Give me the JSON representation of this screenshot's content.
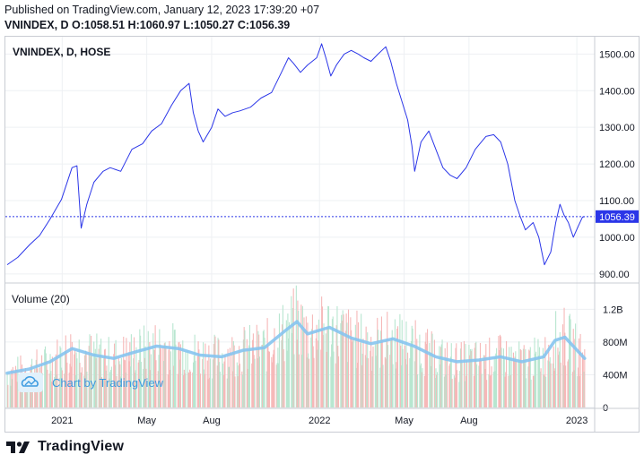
{
  "header": {
    "published": "Published on TradingView.com, January 12, 2023 17:39:20 +07",
    "ohlc": "VNINDEX, D O:1058.51 H:1060.97 L:1050.27 C:1056.39"
  },
  "chart_data": {
    "type": "line",
    "title": "VNINDEX, D, HOSE",
    "last_price_label": "1056.39",
    "last_price": 1056.39,
    "price_ticks": [
      "1500.00",
      "1400.00",
      "1300.00",
      "1200.00",
      "1100.00",
      "1000.00",
      "900.00"
    ],
    "price_tick_values": [
      1500,
      1400,
      1300,
      1200,
      1100,
      1000,
      900
    ],
    "ylim": [
      880,
      1540
    ],
    "x_ticks": [
      "2021",
      "May",
      "Aug",
      "2022",
      "May",
      "Aug",
      "2023"
    ],
    "x_tick_dates": [
      "2021-01-01",
      "2021-05-01",
      "2021-08-01",
      "2022-01-01",
      "2022-05-01",
      "2022-08-01",
      "2023-01-01"
    ],
    "xlim": [
      "2020-10-15",
      "2023-01-25"
    ],
    "series": [
      {
        "values": [
          [
            "2020-10-15",
            925
          ],
          [
            "2020-10-30",
            945
          ],
          [
            "2020-11-16",
            980
          ],
          [
            "2020-11-30",
            1005
          ],
          [
            "2020-12-15",
            1050
          ],
          [
            "2020-12-31",
            1103
          ],
          [
            "2021-01-15",
            1190
          ],
          [
            "2021-01-22",
            1195
          ],
          [
            "2021-01-28",
            1025
          ],
          [
            "2021-02-05",
            1090
          ],
          [
            "2021-02-15",
            1150
          ],
          [
            "2021-02-28",
            1180
          ],
          [
            "2021-03-10",
            1190
          ],
          [
            "2021-03-25",
            1180
          ],
          [
            "2021-04-10",
            1240
          ],
          [
            "2021-04-25",
            1255
          ],
          [
            "2021-05-08",
            1290
          ],
          [
            "2021-05-22",
            1310
          ],
          [
            "2021-06-05",
            1360
          ],
          [
            "2021-06-18",
            1400
          ],
          [
            "2021-06-30",
            1420
          ],
          [
            "2021-07-06",
            1340
          ],
          [
            "2021-07-13",
            1290
          ],
          [
            "2021-07-20",
            1260
          ],
          [
            "2021-08-01",
            1300
          ],
          [
            "2021-08-10",
            1350
          ],
          [
            "2021-08-20",
            1330
          ],
          [
            "2021-08-31",
            1340
          ],
          [
            "2021-09-10",
            1345
          ],
          [
            "2021-09-25",
            1355
          ],
          [
            "2021-10-10",
            1380
          ],
          [
            "2021-10-25",
            1395
          ],
          [
            "2021-11-08",
            1450
          ],
          [
            "2021-11-18",
            1490
          ],
          [
            "2021-11-25",
            1475
          ],
          [
            "2021-12-05",
            1450
          ],
          [
            "2021-12-15",
            1470
          ],
          [
            "2021-12-28",
            1490
          ],
          [
            "2022-01-04",
            1528
          ],
          [
            "2022-01-10",
            1490
          ],
          [
            "2022-01-17",
            1440
          ],
          [
            "2022-01-25",
            1470
          ],
          [
            "2022-02-05",
            1500
          ],
          [
            "2022-02-15",
            1510
          ],
          [
            "2022-02-25",
            1500
          ],
          [
            "2022-03-05",
            1490
          ],
          [
            "2022-03-15",
            1480
          ],
          [
            "2022-03-25",
            1500
          ],
          [
            "2022-04-05",
            1520
          ],
          [
            "2022-04-12",
            1480
          ],
          [
            "2022-04-20",
            1420
          ],
          [
            "2022-04-28",
            1370
          ],
          [
            "2022-05-06",
            1320
          ],
          [
            "2022-05-12",
            1250
          ],
          [
            "2022-05-16",
            1180
          ],
          [
            "2022-05-25",
            1260
          ],
          [
            "2022-06-05",
            1290
          ],
          [
            "2022-06-15",
            1240
          ],
          [
            "2022-06-25",
            1190
          ],
          [
            "2022-07-05",
            1170
          ],
          [
            "2022-07-15",
            1160
          ],
          [
            "2022-07-28",
            1190
          ],
          [
            "2022-08-10",
            1240
          ],
          [
            "2022-08-25",
            1275
          ],
          [
            "2022-09-05",
            1280
          ],
          [
            "2022-09-15",
            1260
          ],
          [
            "2022-09-25",
            1200
          ],
          [
            "2022-10-05",
            1100
          ],
          [
            "2022-10-12",
            1060
          ],
          [
            "2022-10-20",
            1020
          ],
          [
            "2022-10-31",
            1040
          ],
          [
            "2022-11-08",
            1000
          ],
          [
            "2022-11-16",
            925
          ],
          [
            "2022-11-25",
            960
          ],
          [
            "2022-12-02",
            1040
          ],
          [
            "2022-12-08",
            1090
          ],
          [
            "2022-12-14",
            1060
          ],
          [
            "2022-12-20",
            1040
          ],
          [
            "2022-12-27",
            1000
          ],
          [
            "2023-01-03",
            1030
          ],
          [
            "2023-01-09",
            1055
          ],
          [
            "2023-01-12",
            1056
          ]
        ]
      }
    ],
    "volume": {
      "label": "Volume (20)",
      "ticks": [
        "1.2B",
        "800M",
        "400M",
        "0"
      ],
      "tick_values": [
        1200,
        800,
        400,
        0
      ],
      "ylim": [
        0,
        1500
      ],
      "unit": "M",
      "ma_values": [
        [
          "2020-10-15",
          420
        ],
        [
          "2020-11-15",
          470
        ],
        [
          "2020-12-15",
          560
        ],
        [
          "2021-01-15",
          720
        ],
        [
          "2021-02-15",
          640
        ],
        [
          "2021-03-15",
          600
        ],
        [
          "2021-04-15",
          680
        ],
        [
          "2021-05-15",
          750
        ],
        [
          "2021-06-15",
          720
        ],
        [
          "2021-07-15",
          640
        ],
        [
          "2021-08-15",
          620
        ],
        [
          "2021-09-15",
          700
        ],
        [
          "2021-10-15",
          730
        ],
        [
          "2021-11-15",
          950
        ],
        [
          "2021-11-30",
          1050
        ],
        [
          "2021-12-15",
          900
        ],
        [
          "2022-01-15",
          980
        ],
        [
          "2022-02-15",
          850
        ],
        [
          "2022-03-15",
          780
        ],
        [
          "2022-04-15",
          840
        ],
        [
          "2022-05-15",
          750
        ],
        [
          "2022-06-15",
          620
        ],
        [
          "2022-07-15",
          560
        ],
        [
          "2022-08-15",
          580
        ],
        [
          "2022-09-15",
          620
        ],
        [
          "2022-10-15",
          560
        ],
        [
          "2022-11-15",
          620
        ],
        [
          "2022-12-01",
          820
        ],
        [
          "2022-12-15",
          860
        ],
        [
          "2023-01-12",
          600
        ]
      ]
    },
    "line_color": "#2b36e8",
    "volume_up_color": "#b8e6d0",
    "volume_down_color": "#f6b8b8",
    "ma_color": "#86c4ef",
    "grid": true
  },
  "watermark": {
    "text": "Chart by TradingView"
  },
  "footer": {
    "logo_text": "TradingView"
  }
}
